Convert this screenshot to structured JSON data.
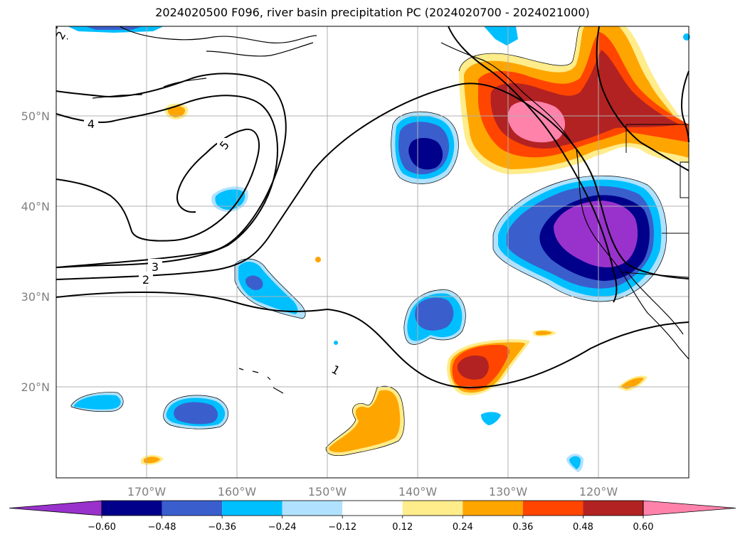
{
  "title": "2024020500 F096, river basin precipitation PC (2024020700 - 2024021000)",
  "map": {
    "lon_range": [
      -180,
      -110
    ],
    "lat_range": [
      10,
      60
    ],
    "lon_ticks": [
      {
        "value": -170,
        "label": "170°W"
      },
      {
        "value": -160,
        "label": "160°W"
      },
      {
        "value": -150,
        "label": "150°W"
      },
      {
        "value": -140,
        "label": "140°W"
      },
      {
        "value": -130,
        "label": "130°W"
      },
      {
        "value": -120,
        "label": "120°W"
      }
    ],
    "lat_ticks": [
      {
        "value": 20,
        "label": "20°N"
      },
      {
        "value": 30,
        "label": "30°N"
      },
      {
        "value": 40,
        "label": "40°N"
      },
      {
        "value": 50,
        "label": "50°N"
      }
    ],
    "grid": true,
    "contour_labels": [
      "1",
      "2",
      "3",
      "4",
      "5",
      "2"
    ]
  },
  "colorbar": {
    "orientation": "horizontal",
    "extend": "both",
    "tick_labels": [
      "−0.60",
      "−0.48",
      "−0.36",
      "−0.24",
      "−0.12",
      "0.12",
      "0.24",
      "0.36",
      "0.48",
      "0.60"
    ],
    "bins": [
      {
        "color": "#9932cc"
      },
      {
        "color": "#00008b"
      },
      {
        "color": "#3a5fcd"
      },
      {
        "color": "#00bfff"
      },
      {
        "color": "#b0e2ff"
      },
      {
        "color": "#ffffff"
      },
      {
        "color": "#ffec8b"
      },
      {
        "color": "#ffa500"
      },
      {
        "color": "#ff4500"
      },
      {
        "color": "#b22222"
      },
      {
        "color": "#ff82ab"
      }
    ]
  },
  "colors": {
    "purple": "#9932cc",
    "navy": "#00008b",
    "royal": "#3a5fcd",
    "sky": "#00bfff",
    "light_blue": "#b0e2ff",
    "light_yellow": "#ffec8b",
    "orange": "#ffa500",
    "red_orange": "#ff4500",
    "firebrick": "#b22222",
    "pink": "#ff82ab",
    "grid": "#b0b0b0"
  }
}
